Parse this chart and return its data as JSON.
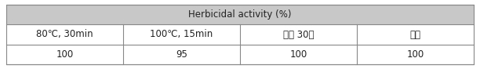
{
  "title": "Herbicidal activity (%)",
  "col_labels": [
    "80℃, 30min",
    "100℃, 15min",
    "실온 30일",
    "냉장"
  ],
  "values": [
    "100",
    "95",
    "100",
    "100"
  ],
  "header_bg": "#c8c8c8",
  "col_label_bg": "#ffffff",
  "value_bg": "#ffffff",
  "border_color": "#888888",
  "text_color": "#222222",
  "header_fontsize": 8.5,
  "cell_fontsize": 8.5,
  "outer_bg": "#ffffff"
}
